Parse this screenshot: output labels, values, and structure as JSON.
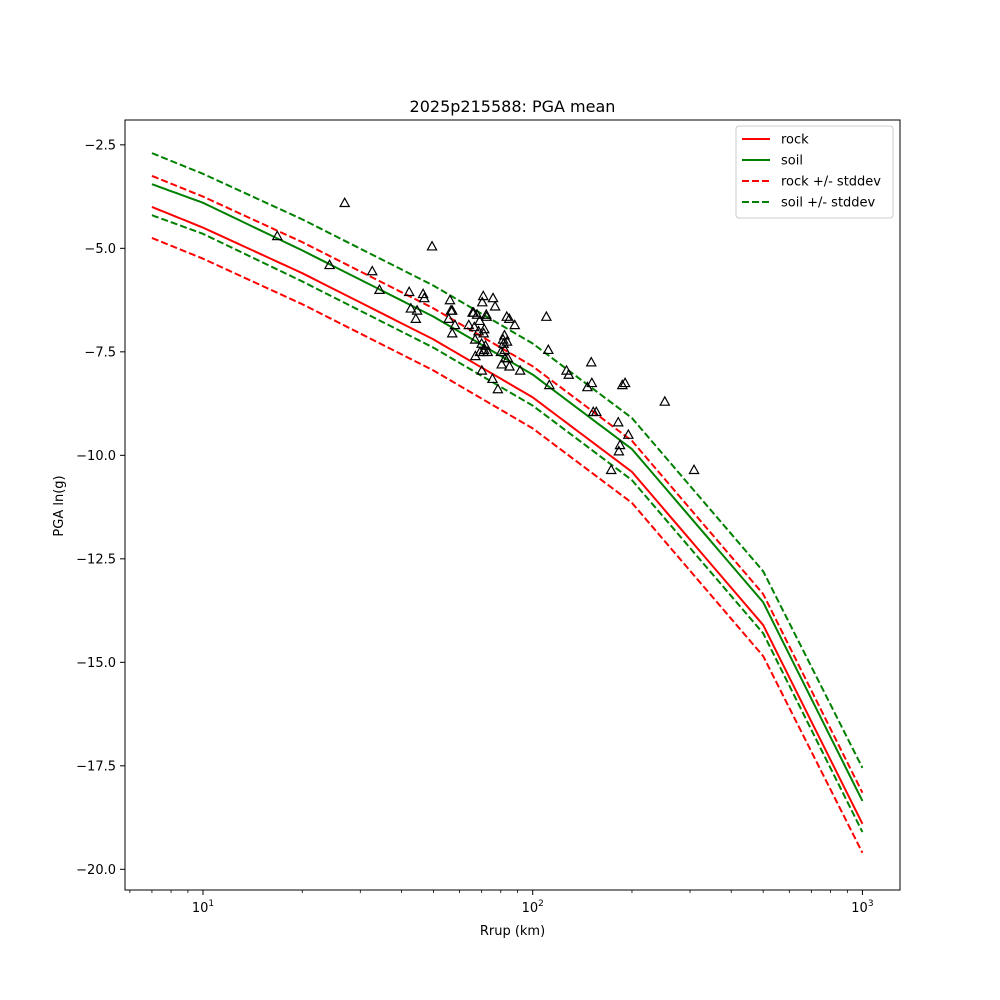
{
  "chart_data": {
    "type": "line",
    "title": "2025p215588: PGA mean",
    "xlabel": "Rrup (km)",
    "ylabel": "PGA ln(g)",
    "xscale": "log",
    "xlim": [
      5.8,
      1300
    ],
    "ylim": [
      -20.5,
      -1.9
    ],
    "x_ticks": [
      {
        "value": 10,
        "base": "10",
        "exp": "1"
      },
      {
        "value": 100,
        "base": "10",
        "exp": "2"
      },
      {
        "value": 1000,
        "base": "10",
        "exp": "3"
      }
    ],
    "y_ticks": [
      {
        "value": -2.5,
        "label": "−2.5"
      },
      {
        "value": -5.0,
        "label": "−5.0"
      },
      {
        "value": -7.5,
        "label": "−7.5"
      },
      {
        "value": -10.0,
        "label": "−10.0"
      },
      {
        "value": -12.5,
        "label": "−12.5"
      },
      {
        "value": -15.0,
        "label": "−15.0"
      },
      {
        "value": -17.5,
        "label": "−17.5"
      },
      {
        "value": -20.0,
        "label": "−20.0"
      }
    ],
    "legend_position": "top-right",
    "series": [
      {
        "name": "rock",
        "color": "#ff0000",
        "dash": "solid",
        "x": [
          7,
          10,
          20,
          50,
          100,
          200,
          500,
          1000
        ],
        "y": [
          -4.0,
          -4.5,
          -5.6,
          -7.2,
          -8.6,
          -10.4,
          -14.1,
          -18.9
        ]
      },
      {
        "name": "soil",
        "color": "#008000",
        "dash": "solid",
        "x": [
          7,
          10,
          20,
          50,
          100,
          200,
          500,
          1000
        ],
        "y": [
          -3.45,
          -3.9,
          -5.05,
          -6.65,
          -8.05,
          -9.85,
          -13.55,
          -18.35
        ]
      },
      {
        "name": "rock +/- stddev",
        "color": "#ff0000",
        "dash": "dashed",
        "x": [
          7,
          10,
          20,
          50,
          100,
          200,
          500,
          1000
        ],
        "y": [
          -3.25,
          -3.75,
          -4.85,
          -6.45,
          -7.85,
          -9.65,
          -13.35,
          -18.15
        ]
      },
      {
        "name": "",
        "color": "#ff0000",
        "dash": "dashed",
        "x": [
          7,
          10,
          20,
          50,
          100,
          200,
          500,
          1000
        ],
        "y": [
          -4.75,
          -5.25,
          -6.35,
          -7.95,
          -9.35,
          -11.15,
          -14.85,
          -19.6
        ]
      },
      {
        "name": "soil +/- stddev",
        "color": "#008000",
        "dash": "dashed",
        "x": [
          7,
          10,
          20,
          50,
          100,
          200,
          500,
          1000
        ],
        "y": [
          -2.7,
          -3.2,
          -4.3,
          -5.9,
          -7.3,
          -9.1,
          -12.8,
          -17.55
        ]
      },
      {
        "name": "",
        "color": "#008000",
        "dash": "dashed",
        "x": [
          7,
          10,
          20,
          50,
          100,
          200,
          500,
          1000
        ],
        "y": [
          -4.2,
          -4.65,
          -5.8,
          -7.4,
          -8.8,
          -10.6,
          -14.3,
          -19.1
        ]
      }
    ],
    "observations": {
      "marker": "triangle",
      "color": "#000000",
      "points": [
        [
          16.8,
          -4.7
        ],
        [
          24.2,
          -5.4
        ],
        [
          26.9,
          -3.9
        ],
        [
          32.6,
          -5.55
        ],
        [
          34.3,
          -6.0
        ],
        [
          42.2,
          -6.05
        ],
        [
          42.7,
          -6.45
        ],
        [
          44.6,
          -6.5
        ],
        [
          44.2,
          -6.7
        ],
        [
          46.5,
          -6.1
        ],
        [
          46.9,
          -6.2
        ],
        [
          49.5,
          -4.95
        ],
        [
          55.6,
          -6.7
        ],
        [
          56.1,
          -6.25
        ],
        [
          56.5,
          -6.5
        ],
        [
          57.0,
          -6.5
        ],
        [
          57.0,
          -7.05
        ],
        [
          58.1,
          -6.85
        ],
        [
          64.0,
          -6.85
        ],
        [
          65.7,
          -6.55
        ],
        [
          66.2,
          -6.55
        ],
        [
          66.5,
          -6.9
        ],
        [
          66.9,
          -7.2
        ],
        [
          67.0,
          -7.6
        ],
        [
          67.8,
          -6.6
        ],
        [
          68.5,
          -7.0
        ],
        [
          69.2,
          -7.5
        ],
        [
          69.0,
          -6.75
        ],
        [
          70.3,
          -6.3
        ],
        [
          70.0,
          -7.3
        ],
        [
          70.1,
          -7.95
        ],
        [
          70.8,
          -6.15
        ],
        [
          70.9,
          -7.5
        ],
        [
          71.0,
          -7.05
        ],
        [
          71.2,
          -7.45
        ],
        [
          71.3,
          -6.95
        ],
        [
          71.9,
          -7.35
        ],
        [
          72.3,
          -6.6
        ],
        [
          72.5,
          -6.65
        ],
        [
          73.0,
          -7.5
        ],
        [
          75.8,
          -6.2
        ],
        [
          75.5,
          -8.15
        ],
        [
          76.9,
          -6.4
        ],
        [
          78.4,
          -8.4
        ],
        [
          80.1,
          -7.5
        ],
        [
          80.5,
          -7.8
        ],
        [
          81.3,
          -7.2
        ],
        [
          81.6,
          -7.3
        ],
        [
          82.1,
          -7.1
        ],
        [
          82.5,
          -7.65
        ],
        [
          82.3,
          -7.45
        ],
        [
          83.4,
          -6.65
        ],
        [
          83.6,
          -7.25
        ],
        [
          84.1,
          -7.65
        ],
        [
          84.9,
          -6.7
        ],
        [
          85.0,
          -7.85
        ],
        [
          88.2,
          -6.85
        ],
        [
          91.6,
          -7.95
        ],
        [
          110.0,
          -6.65
        ],
        [
          111.5,
          -7.45
        ],
        [
          112.3,
          -8.3
        ],
        [
          126.6,
          -7.95
        ],
        [
          128.6,
          -8.05
        ],
        [
          146.5,
          -8.35
        ],
        [
          150.5,
          -7.75
        ],
        [
          151.1,
          -8.25
        ],
        [
          152.6,
          -8.95
        ],
        [
          155.9,
          -8.95
        ],
        [
          173.0,
          -10.35
        ],
        [
          181.7,
          -9.2
        ],
        [
          184.0,
          -9.75
        ],
        [
          182.5,
          -9.9
        ],
        [
          187.0,
          -8.3
        ],
        [
          190.6,
          -8.25
        ],
        [
          195.0,
          -9.5
        ],
        [
          251.5,
          -8.7
        ],
        [
          308.5,
          -10.35
        ]
      ]
    }
  }
}
